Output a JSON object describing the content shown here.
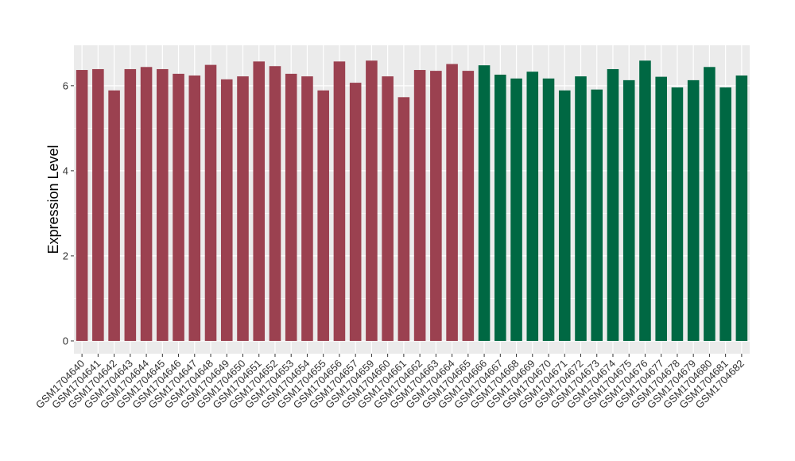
{
  "chart_data": {
    "type": "bar",
    "title": "",
    "xlabel": "",
    "ylabel": "Expression Level",
    "ylim": [
      -0.3,
      6.95
    ],
    "yticks": [
      0,
      2,
      4,
      6
    ],
    "grid": true,
    "panel_background": "#EBEBEB",
    "categories": [
      "GSM1704640",
      "GSM1704641",
      "GSM1704642",
      "GSM1704643",
      "GSM1704644",
      "GSM1704645",
      "GSM1704646",
      "GSM1704647",
      "GSM1704648",
      "GSM1704649",
      "GSM1704650",
      "GSM1704651",
      "GSM1704652",
      "GSM1704653",
      "GSM1704654",
      "GSM1704655",
      "GSM1704656",
      "GSM1704657",
      "GSM1704659",
      "GSM1704660",
      "GSM1704661",
      "GSM1704662",
      "GSM1704663",
      "GSM1704664",
      "GSM1704665",
      "GSM1704666",
      "GSM1704667",
      "GSM1704668",
      "GSM1704669",
      "GSM1704670",
      "GSM1704671",
      "GSM1704672",
      "GSM1704673",
      "GSM1704674",
      "GSM1704675",
      "GSM1704676",
      "GSM1704677",
      "GSM1704678",
      "GSM1704679",
      "GSM1704680",
      "GSM1704681",
      "GSM1704682"
    ],
    "values": [
      6.37,
      6.39,
      5.89,
      6.39,
      6.44,
      6.39,
      6.28,
      6.24,
      6.49,
      6.15,
      6.22,
      6.57,
      6.46,
      6.28,
      6.22,
      5.89,
      6.57,
      6.07,
      6.59,
      6.22,
      5.73,
      6.37,
      6.35,
      6.51,
      6.35,
      6.48,
      6.26,
      6.17,
      6.33,
      6.17,
      5.89,
      6.22,
      5.91,
      6.39,
      6.13,
      6.59,
      6.21,
      5.96,
      6.13,
      6.44,
      5.96,
      6.24
    ],
    "bar_colors": {
      "group1": "#9B4150",
      "group2": "#006843"
    },
    "group1_count": 25
  }
}
